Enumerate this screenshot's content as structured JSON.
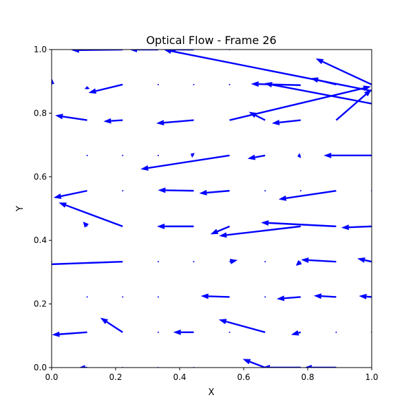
{
  "chart_data": {
    "type": "quiver",
    "title": "Optical Flow - Frame 26",
    "xlabel": "X",
    "ylabel": "Y",
    "xlim": [
      0,
      1
    ],
    "ylim": [
      0,
      1
    ],
    "xticks": [
      "0.0",
      "0.2",
      "0.4",
      "0.6",
      "0.8",
      "1.0"
    ],
    "yticks": [
      "0.0",
      "0.2",
      "0.4",
      "0.6",
      "0.8",
      "1.0"
    ],
    "xtick_values": [
      0,
      0.2,
      0.4,
      0.6,
      0.8,
      1.0
    ],
    "ytick_values": [
      0,
      0.2,
      0.4,
      0.6,
      0.8,
      1.0
    ],
    "grid": false,
    "legend": "none",
    "color": "#0000ff",
    "vectors": [
      {
        "x": 0.0,
        "y": 1.0,
        "u": 0.0,
        "v": 0.0
      },
      {
        "x": 0.111,
        "y": 1.0,
        "u": 0.0,
        "v": 0.0
      },
      {
        "x": 0.222,
        "y": 1.0,
        "u": -0.16,
        "v": -0.002
      },
      {
        "x": 0.333,
        "y": 1.0,
        "u": -0.09,
        "v": 0.0
      },
      {
        "x": 0.444,
        "y": 1.0,
        "u": -0.08,
        "v": 0.0
      },
      {
        "x": 0.556,
        "y": 1.0,
        "u": 0.0,
        "v": 0.0
      },
      {
        "x": 1.0,
        "y": 0.87,
        "u": -0.65,
        "v": 0.13
      },
      {
        "x": 1.0,
        "y": 0.89,
        "u": -0.175,
        "v": 0.082
      },
      {
        "x": 0.889,
        "y": 0.89,
        "u": -0.08,
        "v": 0.02
      },
      {
        "x": 0.0,
        "y": 0.89,
        "u": 0.0,
        "v": 0.02
      },
      {
        "x": 0.111,
        "y": 0.875,
        "u": 0.0,
        "v": 0.01
      },
      {
        "x": 0.222,
        "y": 0.89,
        "u": -0.107,
        "v": -0.026
      },
      {
        "x": 0.333,
        "y": 0.89,
        "u": 0.0,
        "v": 0.0
      },
      {
        "x": 0.444,
        "y": 0.89,
        "u": 0.0,
        "v": 0.0
      },
      {
        "x": 0.556,
        "y": 0.89,
        "u": 0.0,
        "v": 0.0
      },
      {
        "x": 0.778,
        "y": 0.888,
        "u": -0.155,
        "v": 0.004
      },
      {
        "x": 1.0,
        "y": 0.83,
        "u": -0.335,
        "v": 0.064
      },
      {
        "x": 0.556,
        "y": 0.778,
        "u": 0.442,
        "v": 0.106
      },
      {
        "x": 0.889,
        "y": 0.778,
        "u": 0.111,
        "v": 0.097
      },
      {
        "x": 0.111,
        "y": 0.778,
        "u": -0.1,
        "v": 0.015
      },
      {
        "x": 0.222,
        "y": 0.778,
        "u": -0.06,
        "v": -0.004
      },
      {
        "x": 0.444,
        "y": 0.778,
        "u": -0.117,
        "v": -0.01
      },
      {
        "x": 0.667,
        "y": 0.778,
        "u": -0.051,
        "v": 0.026
      },
      {
        "x": 0.778,
        "y": 0.778,
        "u": -0.09,
        "v": -0.01
      },
      {
        "x": 0.111,
        "y": 0.667,
        "u": 0.0,
        "v": 0.0
      },
      {
        "x": 0.222,
        "y": 0.667,
        "u": 0.0,
        "v": 0.0
      },
      {
        "x": 0.333,
        "y": 0.667,
        "u": 0.0,
        "v": 0.0
      },
      {
        "x": 0.444,
        "y": 0.667,
        "u": -0.01,
        "v": 0.005
      },
      {
        "x": 0.556,
        "y": 0.667,
        "u": -0.278,
        "v": -0.043
      },
      {
        "x": 0.667,
        "y": 0.667,
        "u": -0.055,
        "v": -0.01
      },
      {
        "x": 0.778,
        "y": 0.667,
        "u": -0.01,
        "v": -0.003
      },
      {
        "x": 1.0,
        "y": 0.667,
        "u": -0.15,
        "v": 0.0
      },
      {
        "x": 0.111,
        "y": 0.556,
        "u": -0.105,
        "v": -0.022
      },
      {
        "x": 0.222,
        "y": 0.556,
        "u": 0.0,
        "v": 0.0
      },
      {
        "x": 0.444,
        "y": 0.556,
        "u": -0.112,
        "v": 0.002
      },
      {
        "x": 0.556,
        "y": 0.556,
        "u": -0.095,
        "v": -0.008
      },
      {
        "x": 0.667,
        "y": 0.556,
        "u": 0.0,
        "v": 0.0
      },
      {
        "x": 0.778,
        "y": 0.556,
        "u": 0.0,
        "v": 0.0
      },
      {
        "x": 0.889,
        "y": 0.556,
        "u": -0.18,
        "v": -0.027
      },
      {
        "x": 1.0,
        "y": 0.556,
        "u": 0.0,
        "v": 0.0
      },
      {
        "x": 0.222,
        "y": 0.444,
        "u": -0.2,
        "v": 0.075
      },
      {
        "x": 0.111,
        "y": 0.444,
        "u": -0.013,
        "v": 0.015
      },
      {
        "x": 0.444,
        "y": 0.444,
        "u": -0.115,
        "v": 0.0
      },
      {
        "x": 0.556,
        "y": 0.444,
        "u": -0.06,
        "v": -0.025
      },
      {
        "x": 0.778,
        "y": 0.444,
        "u": -0.255,
        "v": -0.03
      },
      {
        "x": 0.889,
        "y": 0.444,
        "u": -0.235,
        "v": 0.012
      },
      {
        "x": 1.0,
        "y": 0.444,
        "u": -0.095,
        "v": -0.004
      },
      {
        "x": 0.222,
        "y": 0.333,
        "u": -0.33,
        "v": -0.012
      },
      {
        "x": 0.0,
        "y": 0.333,
        "u": 0.0,
        "v": 0.0
      },
      {
        "x": 0.333,
        "y": 0.333,
        "u": 0.0,
        "v": 0.0
      },
      {
        "x": 0.444,
        "y": 0.333,
        "u": 0.0,
        "v": 0.0
      },
      {
        "x": 0.556,
        "y": 0.333,
        "u": 0.025,
        "v": 0.005
      },
      {
        "x": 0.667,
        "y": 0.333,
        "u": 0.0,
        "v": 0.0
      },
      {
        "x": 0.778,
        "y": 0.333,
        "u": -0.015,
        "v": -0.013
      },
      {
        "x": 0.889,
        "y": 0.333,
        "u": -0.11,
        "v": 0.006
      },
      {
        "x": 1.0,
        "y": 0.333,
        "u": -0.045,
        "v": 0.01
      },
      {
        "x": 0.111,
        "y": 0.222,
        "u": 0.0,
        "v": 0.0
      },
      {
        "x": 0.222,
        "y": 0.222,
        "u": 0.0,
        "v": 0.0
      },
      {
        "x": 0.333,
        "y": 0.222,
        "u": 0.0,
        "v": 0.0
      },
      {
        "x": 0.556,
        "y": 0.222,
        "u": -0.09,
        "v": 0.003
      },
      {
        "x": 0.667,
        "y": 0.222,
        "u": 0.0,
        "v": 0.0
      },
      {
        "x": 0.778,
        "y": 0.222,
        "u": -0.075,
        "v": -0.006
      },
      {
        "x": 0.889,
        "y": 0.222,
        "u": -0.07,
        "v": 0.004
      },
      {
        "x": 1.0,
        "y": 0.222,
        "u": -0.04,
        "v": 0.003
      },
      {
        "x": 0.111,
        "y": 0.111,
        "u": -0.11,
        "v": -0.008
      },
      {
        "x": 0.222,
        "y": 0.111,
        "u": -0.07,
        "v": 0.046
      },
      {
        "x": 0.333,
        "y": 0.111,
        "u": 0.0,
        "v": 0.0
      },
      {
        "x": 0.444,
        "y": 0.111,
        "u": -0.064,
        "v": 0.0
      },
      {
        "x": 0.556,
        "y": 0.111,
        "u": 0.0,
        "v": 0.0
      },
      {
        "x": 0.667,
        "y": 0.111,
        "u": -0.145,
        "v": 0.04
      },
      {
        "x": 0.778,
        "y": 0.111,
        "u": -0.03,
        "v": -0.008
      },
      {
        "x": 0.889,
        "y": 0.111,
        "u": 0.0,
        "v": 0.0
      },
      {
        "x": 1.0,
        "y": 0.111,
        "u": 0.0,
        "v": 0.0
      },
      {
        "x": 0.111,
        "y": 0.0,
        "u": -0.03,
        "v": -0.002
      },
      {
        "x": 0.222,
        "y": 0.0,
        "u": 0.0,
        "v": 0.0
      },
      {
        "x": 0.333,
        "y": 0.0,
        "u": 0.0,
        "v": 0.0
      },
      {
        "x": 0.444,
        "y": 0.0,
        "u": 0.0,
        "v": 0.0
      },
      {
        "x": 0.667,
        "y": 0.0,
        "u": -0.07,
        "v": 0.027
      },
      {
        "x": 0.778,
        "y": 0.0,
        "u": -0.12,
        "v": 0.0
      },
      {
        "x": 0.889,
        "y": 0.0,
        "u": -0.1,
        "v": 0.0
      }
    ]
  }
}
